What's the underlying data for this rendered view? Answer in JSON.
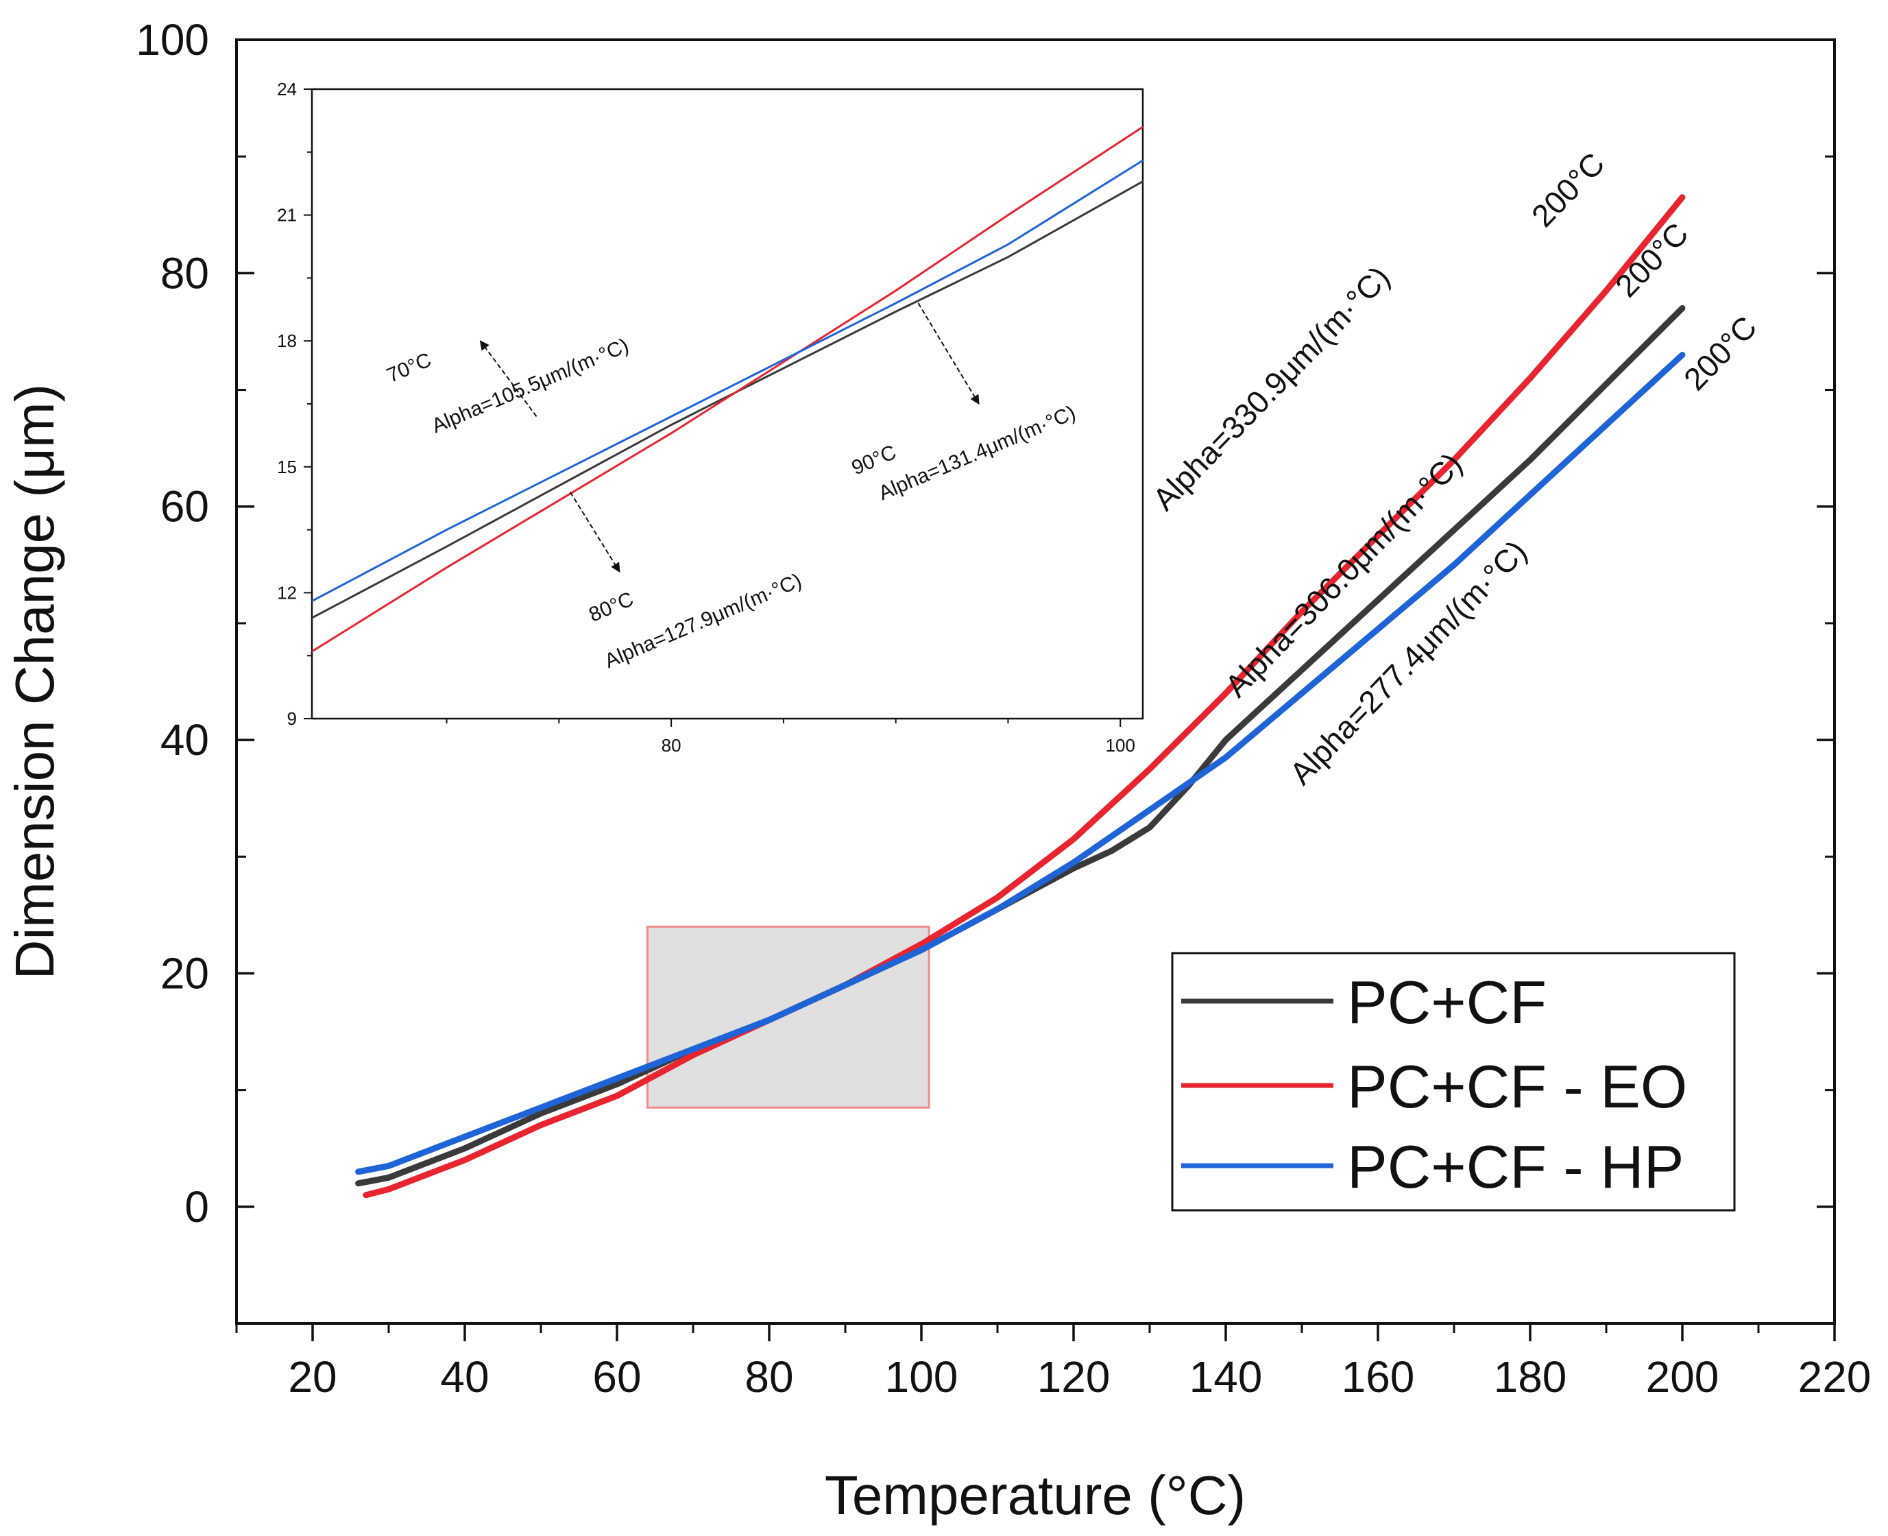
{
  "chart_data": [
    {
      "id": "main",
      "type": "line",
      "title": "",
      "xlabel": "Temperature (°C)",
      "ylabel": "Dimension Change (μm)",
      "xlim": [
        10,
        220
      ],
      "ylim": [
        -10,
        100
      ],
      "x_ticks": [
        20,
        40,
        60,
        80,
        100,
        120,
        140,
        160,
        180,
        200,
        220
      ],
      "y_ticks": [
        0,
        20,
        40,
        60,
        80,
        100
      ],
      "colors": {
        "PC+CF": "#3a3a3a",
        "PC+CF - EO": "#e8242e",
        "PC+CF - HP": "#1e64d6"
      },
      "series": [
        {
          "name": "PC+CF",
          "x": [
            26,
            30,
            40,
            50,
            60,
            70,
            80,
            90,
            100,
            110,
            120,
            125,
            130,
            135,
            140,
            150,
            160,
            170,
            180,
            190,
            200
          ],
          "y": [
            2,
            2.5,
            5,
            8,
            10.5,
            13.5,
            16,
            19,
            22,
            25.5,
            29,
            30.5,
            32.5,
            36,
            40,
            46,
            52,
            58,
            64,
            70.5,
            77
          ]
        },
        {
          "name": "PC+CF - EO",
          "x": [
            27,
            30,
            40,
            50,
            60,
            70,
            80,
            90,
            100,
            110,
            120,
            130,
            140,
            150,
            160,
            170,
            180,
            190,
            200
          ],
          "y": [
            1,
            1.5,
            4,
            7,
            9.5,
            13,
            16,
            19,
            22.5,
            26.5,
            31.5,
            37.5,
            44,
            51,
            57.5,
            64,
            71,
            78.5,
            86.5
          ]
        },
        {
          "name": "PC+CF - HP",
          "x": [
            26,
            30,
            40,
            50,
            60,
            70,
            80,
            90,
            100,
            110,
            120,
            130,
            140,
            150,
            160,
            170,
            180,
            190,
            200
          ],
          "y": [
            3,
            3.5,
            6,
            8.5,
            11,
            13.5,
            16,
            19,
            22,
            25.5,
            29.5,
            34,
            38.5,
            44,
            49.5,
            55,
            61,
            67,
            73
          ]
        }
      ],
      "annotations": [
        {
          "text": "Alpha=330.9μm/(m·°C)",
          "x": 147,
          "y": 69.5
        },
        {
          "text": "200°C",
          "x": 186,
          "y": 86.5
        },
        {
          "text": "Alpha=306.0μm/(m·°C)",
          "x": 156.5,
          "y": 53.5
        },
        {
          "text": "200°C",
          "x": 197,
          "y": 80.5
        },
        {
          "text": "Alpha=277.4μm/(m·°C)",
          "x": 165,
          "y": 46
        },
        {
          "text": "200°C",
          "x": 206,
          "y": 72.5
        }
      ],
      "zoom_region": {
        "x": [
          64,
          101
        ],
        "y": [
          8.5,
          24
        ]
      },
      "legend": {
        "position": "bottom-right",
        "entries": [
          "PC+CF",
          "PC+CF - EO",
          "PC+CF - HP"
        ]
      }
    },
    {
      "id": "inset",
      "type": "line",
      "xlim": [
        64,
        101
      ],
      "ylim": [
        9,
        24
      ],
      "x_ticks": [
        80,
        100
      ],
      "y_ticks": [
        9,
        12,
        15,
        18,
        21,
        24
      ],
      "series": [
        {
          "name": "PC+CF",
          "x": [
            64,
            70,
            80,
            90,
            95,
            101
          ],
          "y": [
            11.4,
            13.1,
            16.0,
            18.7,
            20.0,
            21.8
          ]
        },
        {
          "name": "PC+CF - EO",
          "x": [
            64,
            70,
            80,
            90,
            95,
            101
          ],
          "y": [
            10.6,
            12.6,
            15.8,
            19.2,
            21.0,
            23.1
          ]
        },
        {
          "name": "PC+CF - HP",
          "x": [
            64,
            70,
            80,
            90,
            95,
            101
          ],
          "y": [
            11.8,
            13.5,
            16.2,
            18.9,
            20.3,
            22.3
          ]
        }
      ],
      "annotations": [
        {
          "text": "70°C",
          "x": 67.5,
          "y": 17.0
        },
        {
          "text": "Alpha=105.5μm/(m·°C)",
          "x": 69.5,
          "y": 15.8
        },
        {
          "text": "80°C",
          "x": 76.5,
          "y": 11.3
        },
        {
          "text": "Alpha=127.9μm/(m·°C)",
          "x": 77.2,
          "y": 10.2
        },
        {
          "text": "90°C",
          "x": 88.2,
          "y": 14.8
        },
        {
          "text": "Alpha=131.4μm/(m·°C)",
          "x": 89.4,
          "y": 14.2
        }
      ],
      "arrows": [
        {
          "from": [
            74.0,
            16.2
          ],
          "to": [
            71.5,
            18.0
          ]
        },
        {
          "from": [
            75.5,
            14.4
          ],
          "to": [
            77.7,
            12.5
          ]
        },
        {
          "from": [
            91.0,
            18.9
          ],
          "to": [
            93.7,
            16.5
          ]
        }
      ]
    }
  ]
}
